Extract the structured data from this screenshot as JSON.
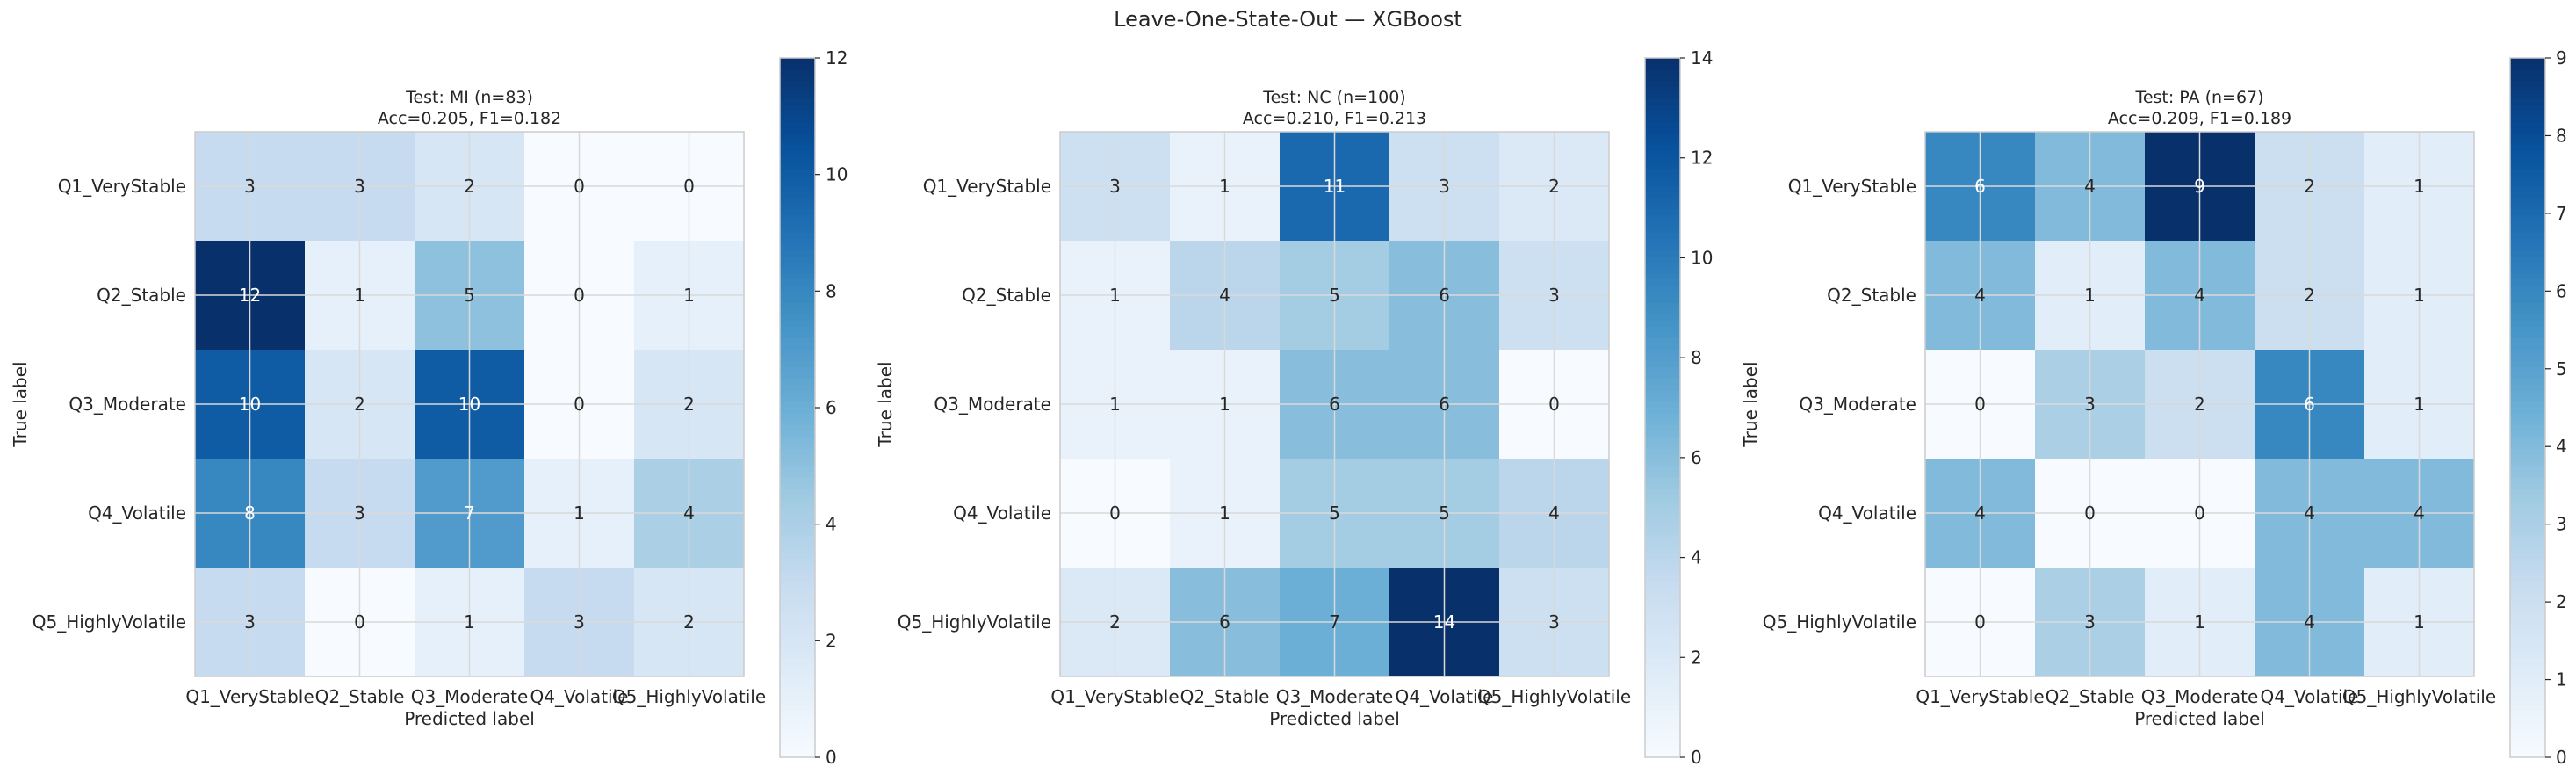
{
  "suptitle": "Leave-One-State-Out — XGBoost",
  "chart_data": [
    {
      "type": "heatmap",
      "title_line1": "Test: MI (n=83)",
      "title_line2": "Acc=0.205, F1=0.182",
      "xlabel": "Predicted label",
      "ylabel": "True label",
      "x_categories": [
        "Q1_VeryStable",
        "Q2_Stable",
        "Q3_Moderate",
        "Q4_Volatile",
        "Q5_HighlyVolatile"
      ],
      "y_categories": [
        "Q1_VeryStable",
        "Q2_Stable",
        "Q3_Moderate",
        "Q4_Volatile",
        "Q5_HighlyVolatile"
      ],
      "matrix": [
        [
          3,
          3,
          2,
          0,
          0
        ],
        [
          12,
          1,
          5,
          0,
          1
        ],
        [
          10,
          2,
          10,
          0,
          2
        ],
        [
          8,
          3,
          7,
          1,
          4
        ],
        [
          3,
          0,
          1,
          3,
          2
        ]
      ],
      "colorbar": {
        "min": 0,
        "max": 12,
        "ticks": [
          0,
          2,
          4,
          6,
          8,
          10,
          12
        ]
      },
      "colormap": "Blues",
      "grid": true
    },
    {
      "type": "heatmap",
      "title_line1": "Test: NC (n=100)",
      "title_line2": "Acc=0.210, F1=0.213",
      "xlabel": "Predicted label",
      "ylabel": "True label",
      "x_categories": [
        "Q1_VeryStable",
        "Q2_Stable",
        "Q3_Moderate",
        "Q4_Volatile",
        "Q5_HighlyVolatile"
      ],
      "y_categories": [
        "Q1_VeryStable",
        "Q2_Stable",
        "Q3_Moderate",
        "Q4_Volatile",
        "Q5_HighlyVolatile"
      ],
      "matrix": [
        [
          3,
          1,
          11,
          3,
          2
        ],
        [
          1,
          4,
          5,
          6,
          3
        ],
        [
          1,
          1,
          6,
          6,
          0
        ],
        [
          0,
          1,
          5,
          5,
          4
        ],
        [
          2,
          6,
          7,
          14,
          3
        ]
      ],
      "colorbar": {
        "min": 0,
        "max": 14,
        "ticks": [
          0,
          2,
          4,
          6,
          8,
          10,
          12,
          14
        ]
      },
      "colormap": "Blues",
      "grid": true
    },
    {
      "type": "heatmap",
      "title_line1": "Test: PA (n=67)",
      "title_line2": "Acc=0.209, F1=0.189",
      "xlabel": "Predicted label",
      "ylabel": "True label",
      "x_categories": [
        "Q1_VeryStable",
        "Q2_Stable",
        "Q3_Moderate",
        "Q4_Volatile",
        "Q5_HighlyVolatile"
      ],
      "y_categories": [
        "Q1_VeryStable",
        "Q2_Stable",
        "Q3_Moderate",
        "Q4_Volatile",
        "Q5_HighlyVolatile"
      ],
      "matrix": [
        [
          6,
          4,
          9,
          2,
          1
        ],
        [
          4,
          1,
          4,
          2,
          1
        ],
        [
          0,
          3,
          2,
          6,
          1
        ],
        [
          4,
          0,
          0,
          4,
          4
        ],
        [
          0,
          3,
          1,
          4,
          1
        ]
      ],
      "colorbar": {
        "min": 0,
        "max": 9,
        "ticks": [
          0,
          1,
          2,
          3,
          4,
          5,
          6,
          7,
          8,
          9
        ]
      },
      "colormap": "Blues",
      "grid": true
    }
  ]
}
